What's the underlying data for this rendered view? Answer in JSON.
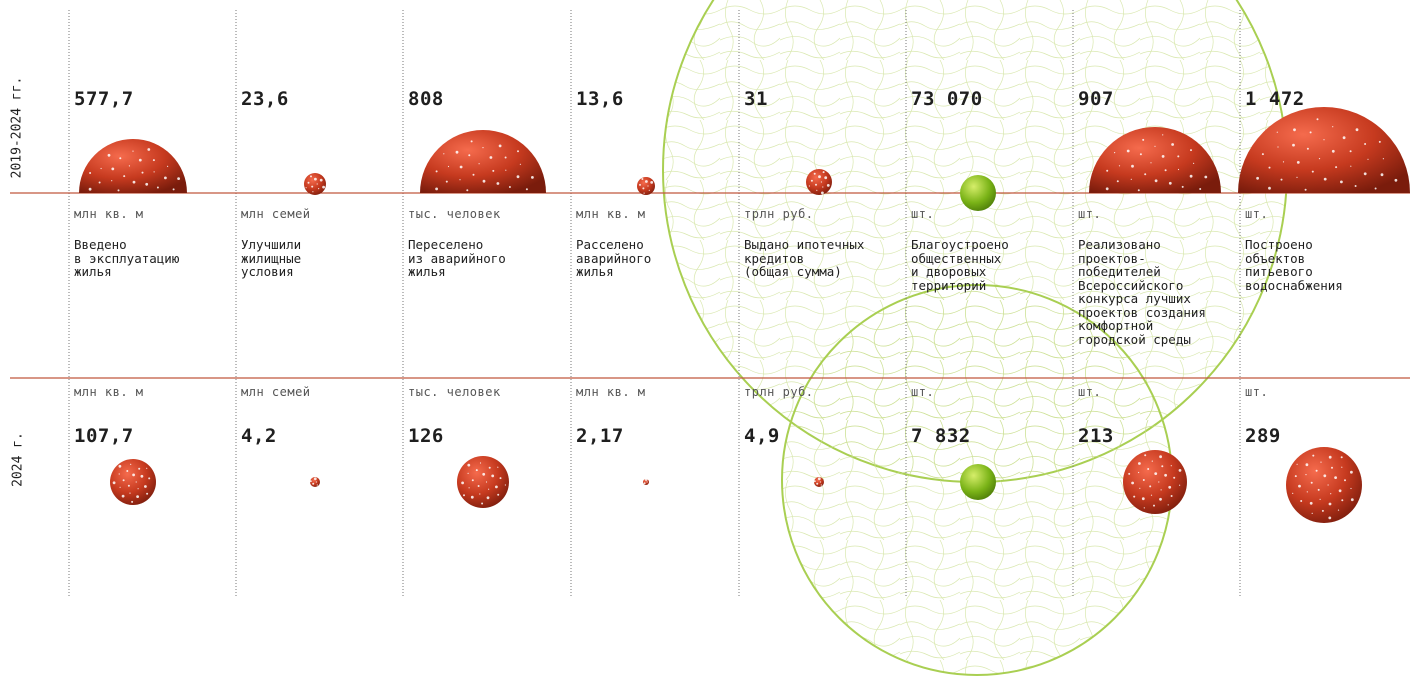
{
  "chart_data": {
    "type": "bubble",
    "periods": [
      {
        "label": "2019-2024 гг."
      },
      {
        "label": "2024 г."
      }
    ],
    "categories": [
      {
        "key": "housing",
        "unit": "млн кв. м",
        "description": "Введено\nв эксплуатацию\nжилья",
        "value_2019_2024": "577,7",
        "value_2024": "107,7",
        "highlight": false
      },
      {
        "key": "families",
        "unit": "млн семей",
        "description": "Улучшили\nжилищные\nусловия",
        "value_2019_2024": "23,6",
        "value_2024": "4,2",
        "highlight": false
      },
      {
        "key": "resettled_people",
        "unit": "тыс. человек",
        "description": "Переселено\nиз аварийного\nжилья",
        "value_2019_2024": "808",
        "value_2024": "126",
        "highlight": false
      },
      {
        "key": "resettled_area",
        "unit": "млн кв. м",
        "description": "Расселено\nаварийного\nжилья",
        "value_2019_2024": "13,6",
        "value_2024": "2,17",
        "highlight": false
      },
      {
        "key": "mortgages",
        "unit": "трлн руб.",
        "description": "Выдано ипотечных\nкредитов\n(общая сумма)",
        "value_2019_2024": "31",
        "value_2024": "4,9",
        "highlight": false
      },
      {
        "key": "public_spaces",
        "unit": "шт.",
        "description": "Благоустроено\nобщественных\nи дворовых\nтерриторий",
        "value_2019_2024": "73 070",
        "value_2024": "7 832",
        "highlight": true
      },
      {
        "key": "urban_projects",
        "unit": "шт.",
        "description": "Реализовано\nпроектов-\nпобедителей\nВсероссийского\nконкурса лучших\nпроектов создания\nкомфортной\nгородской среды",
        "value_2019_2024": "907",
        "value_2024": "213",
        "highlight": false
      },
      {
        "key": "water_objects",
        "unit": "шт.",
        "description": "Построено\nобъектов\nпитьевого\nводоснабжения",
        "value_2019_2024": "1 472",
        "value_2024": "289",
        "highlight": false
      }
    ]
  },
  "colors": {
    "red_bubble": "#c63a1f",
    "red_bubble_light": "#f06a4c",
    "red_bubble_dark": "#7a1c0c",
    "green_bubble": "#7ab317",
    "green_bubble_light": "#d6ee6a",
    "green_outline": "#a9cf52",
    "axis_line": "#c0573f",
    "divider": "#888888"
  }
}
